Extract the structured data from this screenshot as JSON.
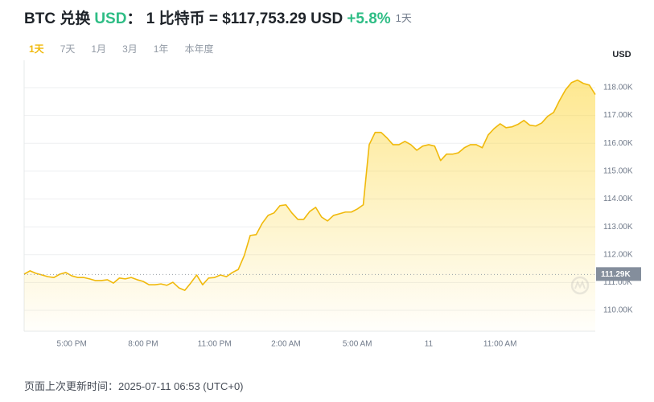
{
  "header": {
    "from": "BTC 兑换",
    "to": "USD",
    "rate": "： 1 比特币 = $117,753.29 USD",
    "change": "+5.8%",
    "period": "1天"
  },
  "tabs": [
    "1天",
    "7天",
    "1月",
    "3月",
    "1年",
    "本年度"
  ],
  "footer": {
    "label": "页面上次更新时间：",
    "time": "2025-07-11 06:53 (UTC+0)"
  },
  "chart_data": {
    "type": "line",
    "y_axis_label": "USD",
    "color": "#f0b90b",
    "grid": true,
    "categories": [
      null,
      null,
      null,
      null,
      null,
      null,
      null,
      null,
      "5:00 PM",
      null,
      null,
      null,
      null,
      null,
      null,
      null,
      null,
      null,
      null,
      null,
      "8:00 PM",
      null,
      null,
      null,
      null,
      null,
      null,
      null,
      null,
      null,
      null,
      null,
      "11:00 PM",
      null,
      null,
      null,
      null,
      null,
      null,
      null,
      null,
      null,
      null,
      null,
      "2:00 AM",
      null,
      null,
      null,
      null,
      null,
      null,
      null,
      null,
      null,
      null,
      null,
      "5:00 AM",
      null,
      null,
      null,
      null,
      null,
      null,
      null,
      null,
      null,
      null,
      null,
      "11",
      null,
      null,
      null,
      null,
      null,
      null,
      null,
      null,
      null,
      null,
      null,
      "11:00 AM",
      null,
      null,
      null,
      null,
      null,
      null,
      null,
      null,
      null,
      null,
      null,
      null,
      null,
      null,
      null,
      null
    ],
    "values": [
      111300,
      111420,
      111330,
      111270,
      111210,
      111180,
      111300,
      111360,
      111240,
      111180,
      111180,
      111130,
      111070,
      111070,
      111100,
      110980,
      111160,
      111130,
      111180,
      111100,
      111040,
      110920,
      110920,
      110950,
      110900,
      111010,
      110810,
      110720,
      110980,
      111270,
      110920,
      111160,
      111180,
      111270,
      111210,
      111360,
      111470,
      111970,
      112690,
      112720,
      113120,
      113410,
      113500,
      113760,
      113790,
      113500,
      113270,
      113270,
      113550,
      113700,
      113350,
      113210,
      113410,
      113470,
      113530,
      113530,
      113640,
      113790,
      115950,
      116390,
      116390,
      116190,
      115950,
      115950,
      116070,
      115950,
      115750,
      115900,
      115950,
      115900,
      115380,
      115610,
      115610,
      115660,
      115840,
      115950,
      115950,
      115840,
      116300,
      116530,
      116700,
      116560,
      116590,
      116680,
      116820,
      116650,
      116620,
      116730,
      116970,
      117110,
      117540,
      117920,
      118180,
      118270,
      118150,
      118090,
      117750
    ],
    "ylim": [
      109250,
      118980
    ],
    "yticks": [
      {
        "value": 110000,
        "label": "110.00K"
      },
      {
        "value": 111000,
        "label": "111.00K"
      },
      {
        "value": 112000,
        "label": "112.00K"
      },
      {
        "value": 113000,
        "label": "113.00K"
      },
      {
        "value": 114000,
        "label": "114.00K"
      },
      {
        "value": 115000,
        "label": "115.00K"
      },
      {
        "value": 116000,
        "label": "116.00K"
      },
      {
        "value": 117000,
        "label": "117.00K"
      },
      {
        "value": 118000,
        "label": "118.00K"
      }
    ],
    "reference": {
      "value": 111290,
      "label": "111.29K"
    }
  }
}
